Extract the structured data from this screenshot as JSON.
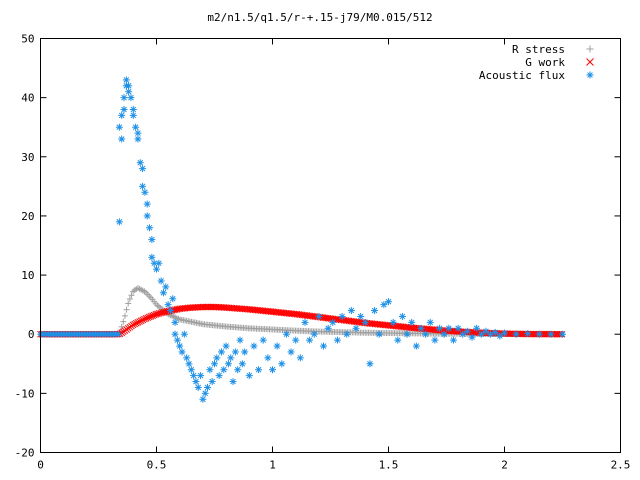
{
  "chart_data": {
    "type": "scatter",
    "title": "m2/n1.5/q1.5/r-+.15-j79/M0.015/512",
    "xlabel": "",
    "ylabel": "",
    "xlim": [
      0,
      2.5
    ],
    "ylim": [
      -20,
      50
    ],
    "x_ticks": [
      0,
      0.5,
      1,
      1.5,
      2,
      2.5
    ],
    "x_tick_labels": [
      "0",
      "0.5",
      "1",
      "1.5",
      "2",
      "2.5"
    ],
    "y_ticks": [
      -20,
      -10,
      0,
      10,
      20,
      30,
      40,
      50
    ],
    "y_tick_labels": [
      "-20",
      "-10",
      "0",
      "10",
      "20",
      "30",
      "40",
      "50"
    ],
    "grid": false,
    "legend_position": "top-right",
    "series": [
      {
        "name": "R stress",
        "marker": "plus",
        "color": "#a0a0a0",
        "curve": {
          "x": [
            0,
            0.34,
            0.36,
            0.38,
            0.4,
            0.42,
            0.45,
            0.48,
            0.5,
            0.55,
            0.6,
            0.7,
            0.8,
            0.9,
            1.0,
            1.1,
            1.2,
            1.3,
            1.4,
            1.5,
            1.6,
            1.7,
            1.8,
            1.9,
            2.0,
            2.1,
            2.25
          ],
          "y": [
            0,
            0,
            2.5,
            5.5,
            7.3,
            7.8,
            7.2,
            6.0,
            5.0,
            3.4,
            2.5,
            1.7,
            1.3,
            1.0,
            0.8,
            0.6,
            0.45,
            0.35,
            0.25,
            0.2,
            0.15,
            0.1,
            0.08,
            0.05,
            0.03,
            0.02,
            0
          ]
        }
      },
      {
        "name": "G work",
        "marker": "x",
        "color": "#ff0000",
        "curve": {
          "x": [
            0,
            0.34,
            0.36,
            0.4,
            0.45,
            0.5,
            0.55,
            0.6,
            0.65,
            0.7,
            0.75,
            0.8,
            0.9,
            1.0,
            1.1,
            1.2,
            1.3,
            1.4,
            1.5,
            1.6,
            1.7,
            1.8,
            1.9,
            2.0,
            2.1,
            2.25
          ],
          "y": [
            0,
            0,
            0.5,
            1.6,
            2.6,
            3.4,
            3.9,
            4.3,
            4.5,
            4.6,
            4.6,
            4.5,
            4.2,
            3.8,
            3.4,
            2.9,
            2.4,
            1.9,
            1.5,
            1.1,
            0.75,
            0.45,
            0.25,
            0.1,
            0.03,
            0
          ]
        }
      },
      {
        "name": "Acoustic flux",
        "marker": "star",
        "color": "#1e90e6",
        "points": [
          [
            0.34,
            19
          ],
          [
            0.34,
            35
          ],
          [
            0.35,
            37
          ],
          [
            0.35,
            33
          ],
          [
            0.36,
            38
          ],
          [
            0.36,
            40
          ],
          [
            0.37,
            42
          ],
          [
            0.37,
            43
          ],
          [
            0.38,
            42
          ],
          [
            0.38,
            41
          ],
          [
            0.39,
            40
          ],
          [
            0.4,
            37
          ],
          [
            0.4,
            38
          ],
          [
            0.41,
            35
          ],
          [
            0.42,
            33
          ],
          [
            0.42,
            34
          ],
          [
            0.43,
            29
          ],
          [
            0.44,
            28
          ],
          [
            0.44,
            25
          ],
          [
            0.45,
            24
          ],
          [
            0.46,
            22
          ],
          [
            0.46,
            20
          ],
          [
            0.47,
            18
          ],
          [
            0.48,
            16
          ],
          [
            0.48,
            13
          ],
          [
            0.49,
            12
          ],
          [
            0.5,
            11
          ],
          [
            0.51,
            12
          ],
          [
            0.52,
            9
          ],
          [
            0.53,
            7
          ],
          [
            0.54,
            8
          ],
          [
            0.55,
            5
          ],
          [
            0.56,
            4
          ],
          [
            0.57,
            6
          ],
          [
            0.58,
            2
          ],
          [
            0.58,
            0
          ],
          [
            0.59,
            -1
          ],
          [
            0.6,
            -2
          ],
          [
            0.61,
            -3
          ],
          [
            0.62,
            0
          ],
          [
            0.63,
            -4
          ],
          [
            0.64,
            -5
          ],
          [
            0.65,
            -6
          ],
          [
            0.66,
            -7
          ],
          [
            0.67,
            -8
          ],
          [
            0.68,
            -9
          ],
          [
            0.69,
            -7
          ],
          [
            0.7,
            -11
          ],
          [
            0.71,
            -10
          ],
          [
            0.72,
            -9
          ],
          [
            0.73,
            -6
          ],
          [
            0.74,
            -8
          ],
          [
            0.75,
            -5
          ],
          [
            0.76,
            -4
          ],
          [
            0.77,
            -7
          ],
          [
            0.78,
            -3
          ],
          [
            0.79,
            -6
          ],
          [
            0.8,
            -2
          ],
          [
            0.81,
            -5
          ],
          [
            0.82,
            -4
          ],
          [
            0.83,
            -8
          ],
          [
            0.84,
            -3
          ],
          [
            0.85,
            -6
          ],
          [
            0.86,
            -1
          ],
          [
            0.87,
            -5
          ],
          [
            0.88,
            -3
          ],
          [
            0.9,
            -7
          ],
          [
            0.92,
            -2
          ],
          [
            0.94,
            -6
          ],
          [
            0.96,
            -1
          ],
          [
            0.98,
            -4
          ],
          [
            1.0,
            -6
          ],
          [
            1.02,
            -2
          ],
          [
            1.04,
            -5
          ],
          [
            1.06,
            0
          ],
          [
            1.08,
            -3
          ],
          [
            1.1,
            -1
          ],
          [
            1.12,
            -4
          ],
          [
            1.14,
            2
          ],
          [
            1.16,
            -1
          ],
          [
            1.18,
            0
          ],
          [
            1.2,
            3
          ],
          [
            1.22,
            -2
          ],
          [
            1.24,
            1
          ],
          [
            1.26,
            2
          ],
          [
            1.28,
            -1
          ],
          [
            1.3,
            3
          ],
          [
            1.32,
            0
          ],
          [
            1.34,
            4
          ],
          [
            1.36,
            1
          ],
          [
            1.38,
            3
          ],
          [
            1.4,
            2
          ],
          [
            1.42,
            -5
          ],
          [
            1.44,
            4
          ],
          [
            1.46,
            0
          ],
          [
            1.48,
            5
          ],
          [
            1.5,
            5.5
          ],
          [
            1.52,
            2
          ],
          [
            1.54,
            -1
          ],
          [
            1.56,
            3
          ],
          [
            1.58,
            0
          ],
          [
            1.6,
            2
          ],
          [
            1.62,
            -2
          ],
          [
            1.64,
            1
          ],
          [
            1.66,
            0
          ],
          [
            1.68,
            2
          ],
          [
            1.7,
            -1
          ],
          [
            1.72,
            1
          ],
          [
            1.74,
            0
          ],
          [
            1.76,
            1
          ],
          [
            1.78,
            -1
          ],
          [
            1.8,
            1
          ],
          [
            1.82,
            0
          ],
          [
            1.84,
            0.5
          ],
          [
            1.86,
            -0.5
          ],
          [
            1.88,
            1
          ],
          [
            1.9,
            0
          ],
          [
            1.92,
            0.5
          ],
          [
            1.94,
            0
          ],
          [
            1.96,
            0.3
          ],
          [
            1.98,
            -0.3
          ],
          [
            2.0,
            0.2
          ],
          [
            2.05,
            0
          ],
          [
            2.1,
            0.1
          ],
          [
            2.15,
            0
          ],
          [
            2.2,
            0
          ],
          [
            2.25,
            0
          ]
        ],
        "baseline": {
          "x_from": 0,
          "x_to": 0.34,
          "y": 0
        }
      }
    ]
  }
}
